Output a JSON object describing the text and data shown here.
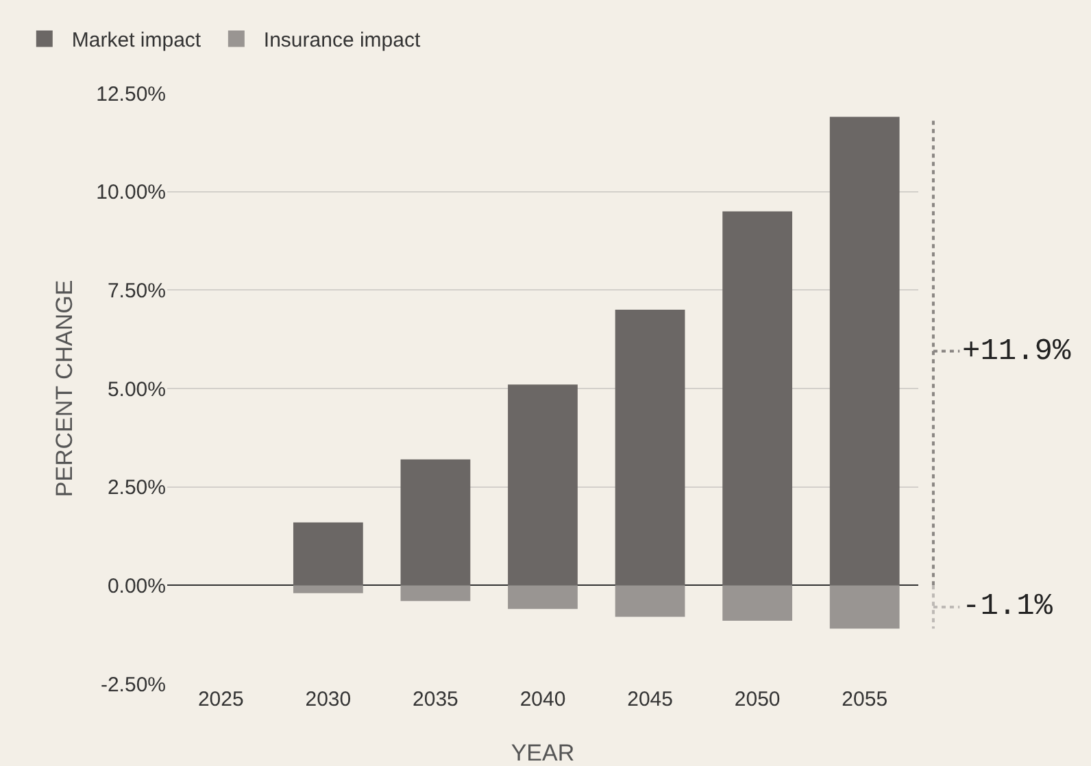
{
  "chart_data": {
    "type": "bar",
    "stacked": true,
    "categories": [
      "2025",
      "2030",
      "2035",
      "2040",
      "2045",
      "2050",
      "2055"
    ],
    "series": [
      {
        "name": "Market impact",
        "color": "#6b6765",
        "values": [
          0,
          1.6,
          3.2,
          5.1,
          7.0,
          9.5,
          11.9
        ]
      },
      {
        "name": "Insurance impact",
        "color": "#999592",
        "values": [
          0,
          -0.2,
          -0.4,
          -0.6,
          -0.8,
          -0.9,
          -1.1
        ]
      }
    ],
    "xlabel": "YEAR",
    "ylabel": "PERCENT CHANGE",
    "ylim": [
      -2.5,
      12.5
    ],
    "yticks": [
      {
        "value": -2.5,
        "label": "-2.50%"
      },
      {
        "value": 0,
        "label": "0.00%"
      },
      {
        "value": 2.5,
        "label": "2.50%"
      },
      {
        "value": 5,
        "label": "5.00%"
      },
      {
        "value": 7.5,
        "label": "7.50%"
      },
      {
        "value": 10,
        "label": "10.00%"
      },
      {
        "value": 12.5,
        "label": "12.50%"
      }
    ],
    "grid": "y",
    "legend": "top left",
    "annotations": [
      "+11.9%",
      "-1.1%"
    ]
  }
}
